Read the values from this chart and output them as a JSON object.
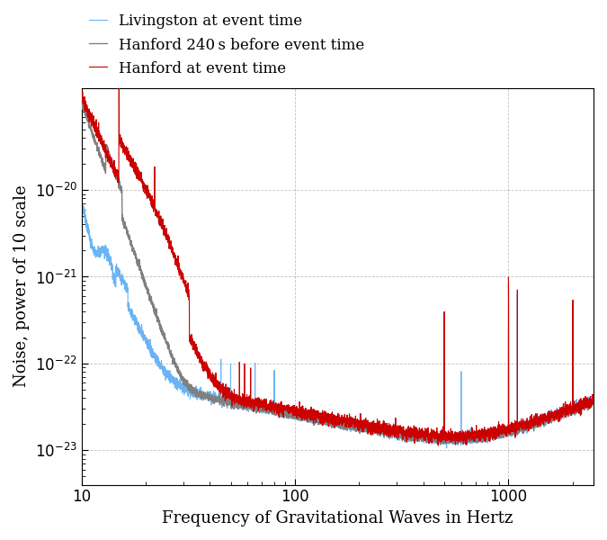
{
  "xlabel": "Frequency of Gravitational Waves in Hertz",
  "ylabel": "Noise, power of 10 scale",
  "xlim": [
    10,
    2500
  ],
  "ylim": [
    4e-24,
    1.5e-19
  ],
  "legend": [
    {
      "label": "Hanford 240 s before event time",
      "color": "#808080",
      "lw": 1.0
    },
    {
      "label": "Hanford at event time",
      "color": "#cc0000",
      "lw": 0.8
    },
    {
      "label": "Livingston at event time",
      "color": "#6ab4f5",
      "lw": 0.8
    }
  ],
  "background_color": "#ffffff",
  "grid_color": "#999999",
  "seed": 12345
}
